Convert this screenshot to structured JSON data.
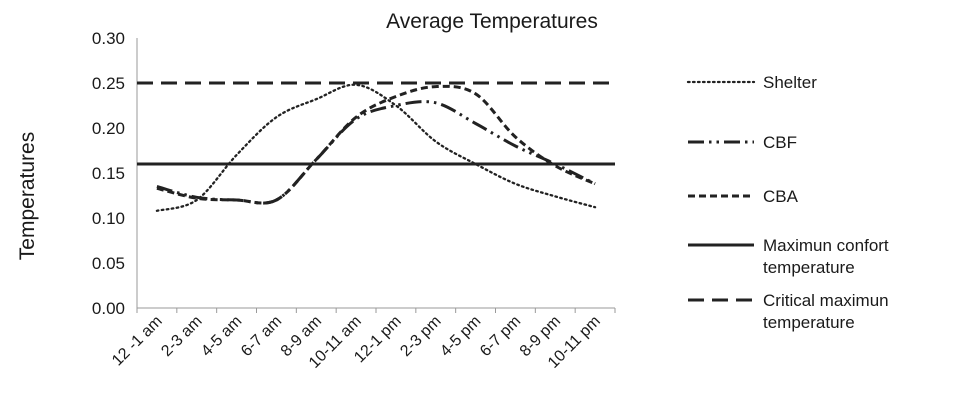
{
  "chart_data": {
    "type": "line",
    "title": "Average Temperatures",
    "xlabel": "",
    "ylabel": "Temperatures",
    "ylim": [
      0,
      0.3
    ],
    "yticks": [
      "0.00",
      "0.05",
      "0.10",
      "0.15",
      "0.20",
      "0.25",
      "0.30"
    ],
    "categories": [
      "12 -1 am",
      "2-3 am",
      "4-5 am",
      "6-7 am",
      "8-9 am",
      "10-11 am",
      "12-1 pm",
      "2-3 pm",
      "4-5 pm",
      "6-7 pm",
      "8-9 pm",
      "10-11 pm"
    ],
    "grid": false,
    "legend_position": "right",
    "series": [
      {
        "name": "Shelter",
        "style": "dotted",
        "color": "#222222",
        "values": [
          0.108,
          0.12,
          0.17,
          0.212,
          0.232,
          0.248,
          0.225,
          0.185,
          0.16,
          0.138,
          0.124,
          0.112
        ]
      },
      {
        "name": "CBF",
        "style": "dashdotdot",
        "color": "#222222",
        "values": [
          0.135,
          0.123,
          0.12,
          0.12,
          0.165,
          0.21,
          0.225,
          0.228,
          0.205,
          0.18,
          0.16,
          0.138
        ]
      },
      {
        "name": "CBA",
        "style": "shortdash",
        "color": "#222222",
        "values": [
          0.133,
          0.122,
          0.12,
          0.12,
          0.165,
          0.212,
          0.235,
          0.246,
          0.238,
          0.19,
          0.158,
          0.138
        ]
      },
      {
        "name": "Maximun confort temperature",
        "style": "solid",
        "color": "#222222",
        "values": [
          0.16,
          0.16,
          0.16,
          0.16,
          0.16,
          0.16,
          0.16,
          0.16,
          0.16,
          0.16,
          0.16,
          0.16
        ]
      },
      {
        "name": "Critical maximun temperature",
        "style": "longdash",
        "color": "#222222",
        "values": [
          0.25,
          0.25,
          0.25,
          0.25,
          0.25,
          0.25,
          0.25,
          0.25,
          0.25,
          0.25,
          0.25,
          0.25
        ]
      }
    ]
  }
}
